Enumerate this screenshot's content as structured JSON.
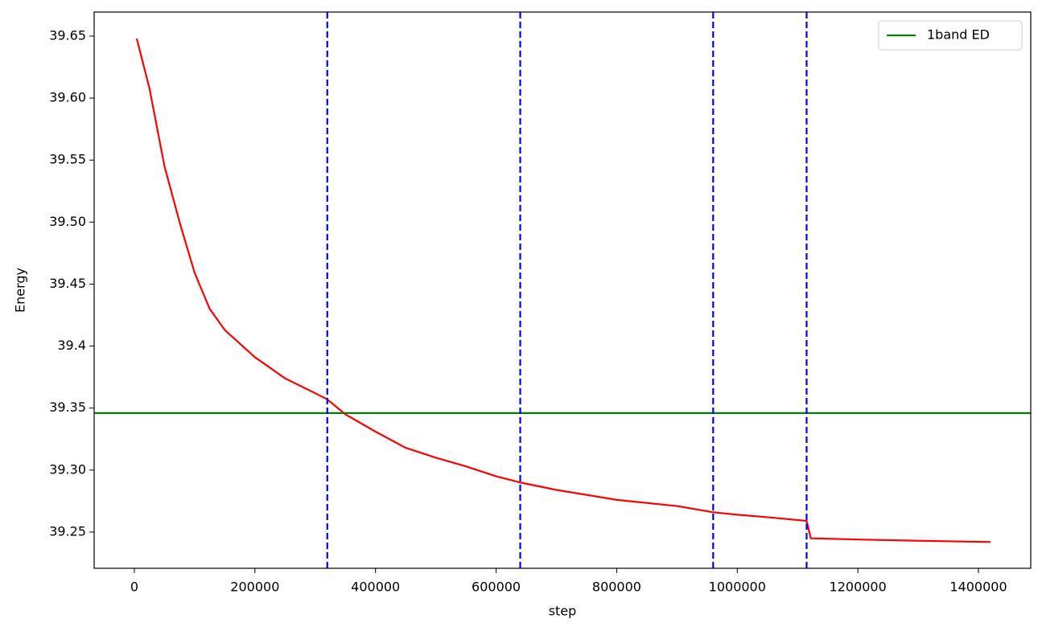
{
  "chart_data": {
    "type": "line",
    "xlabel": "step",
    "ylabel": "Energy",
    "xlim": [
      -66700,
      1486700
    ],
    "ylim": [
      39.2208,
      39.6694
    ],
    "xticks": [
      0,
      200000,
      400000,
      600000,
      800000,
      1000000,
      1200000,
      1400000
    ],
    "yticks": [
      39.25,
      {
        "value": 39.3,
        "label": "39.30"
      },
      39.35,
      39.4,
      39.45,
      {
        "value": 39.5,
        "label": "39.50"
      },
      39.55,
      {
        "value": 39.6,
        "label": "39.60"
      },
      39.65
    ],
    "series": [
      {
        "color": "#ff0000",
        "x": [
          4000,
          25000,
          50000,
          75000,
          100000,
          125000,
          150000,
          200000,
          250000,
          300000,
          320000,
          350000,
          400000,
          450000,
          500000,
          550000,
          600000,
          640000,
          700000,
          800000,
          900000,
          960000,
          1000000,
          1050000,
          1115000,
          1122000,
          1200000,
          1300000,
          1420000
        ],
        "values": [
          39.648,
          39.608,
          39.545,
          39.5,
          39.459,
          39.43,
          39.413,
          39.391,
          39.374,
          39.362,
          39.357,
          39.345,
          39.331,
          39.318,
          39.31,
          39.303,
          39.295,
          39.29,
          39.284,
          39.276,
          39.271,
          39.266,
          39.264,
          39.262,
          39.259,
          39.245,
          39.244,
          39.243,
          39.242
        ]
      }
    ],
    "hlines": [
      {
        "name": "1band ED",
        "value": 39.346,
        "color": "#008000"
      }
    ],
    "vlines": {
      "color": "#0000ff",
      "values": [
        320000,
        640000,
        960000,
        1115000
      ]
    },
    "legend": "upper right"
  }
}
